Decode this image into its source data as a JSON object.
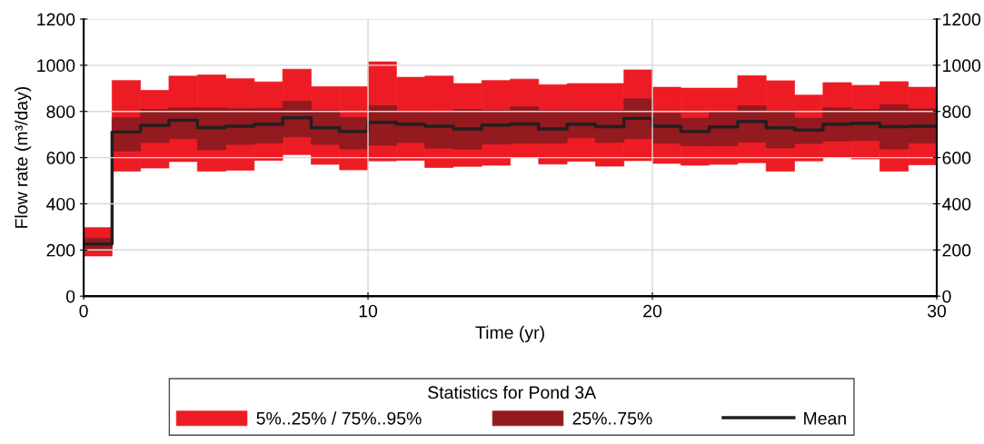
{
  "chart_data": {
    "type": "step",
    "xlabel": "Time (yr)",
    "ylabel": "Flow rate (m³/day)",
    "legend_title": "Statistics for Pond 3A",
    "legend": "bottom",
    "grid": true,
    "x": [
      0,
      1,
      2,
      3,
      4,
      5,
      6,
      7,
      8,
      9,
      10,
      11,
      12,
      13,
      14,
      15,
      16,
      17,
      18,
      19,
      20,
      21,
      22,
      23,
      24,
      25,
      26,
      27,
      28,
      29,
      30
    ],
    "xlim": [
      0,
      30
    ],
    "xticks": [
      0,
      10,
      20,
      30
    ],
    "ylim": [
      0,
      1200
    ],
    "yticks": [
      0,
      200,
      400,
      600,
      800,
      1000,
      1200
    ],
    "y2lim": [
      0,
      1200
    ],
    "y2ticks": [
      0,
      200,
      400,
      600,
      800,
      1000,
      1200
    ],
    "series": [
      {
        "name": "5%..25% / 75%..95%",
        "type": "bar",
        "color": "#ed1c24",
        "x": [
          0.5,
          1.5,
          2.5,
          3.5,
          4.5,
          5.5,
          6.5,
          7.5,
          8.5,
          9.5,
          10.5,
          11.5,
          12.5,
          13.5,
          14.5,
          15.5,
          16.5,
          17.5,
          18.5,
          19.5,
          20.5,
          21.5,
          22.5,
          23.5,
          24.5,
          25.5,
          26.5,
          27.5,
          28.5,
          29.5
        ],
        "base": [
          174,
          541,
          555,
          583,
          541,
          545,
          588,
          613,
          571,
          547,
          586,
          588,
          557,
          562,
          567,
          600,
          572,
          584,
          563,
          587,
          575,
          567,
          571,
          578,
          541,
          586,
          601,
          594,
          541,
          569
        ],
        "values": [
          123,
          393,
          336,
          370,
          417,
          397,
          340,
          370,
          336,
          360,
          429,
          360,
          396,
          359,
          367,
          340,
          344,
          337,
          358,
          393,
          330,
          334,
          330,
          377,
          392,
          285,
          324,
          319,
          388,
          336
        ]
      },
      {
        "name": "25%..75%",
        "type": "bar",
        "color": "#931a1e",
        "x": [
          0.5,
          1.5,
          2.5,
          3.5,
          4.5,
          5.5,
          6.5,
          7.5,
          8.5,
          9.5,
          10.5,
          11.5,
          12.5,
          13.5,
          14.5,
          15.5,
          16.5,
          17.5,
          18.5,
          19.5,
          20.5,
          21.5,
          22.5,
          23.5,
          24.5,
          25.5,
          26.5,
          27.5,
          28.5,
          29.5
        ],
        "base": [
          204,
          629,
          665,
          682,
          634,
          657,
          663,
          690,
          657,
          638,
          653,
          666,
          641,
          636,
          659,
          662,
          662,
          686,
          666,
          682,
          662,
          651,
          651,
          667,
          642,
          661,
          672,
          674,
          638,
          663
        ],
        "values": [
          47,
          143,
          143,
          134,
          182,
          155,
          150,
          154,
          147,
          136,
          172,
          133,
          160,
          172,
          145,
          158,
          142,
          118,
          138,
          173,
          129,
          120,
          150,
          157,
          161,
          110,
          144,
          134,
          191,
          148
        ]
      },
      {
        "name": "Mean",
        "color": "#231f20",
        "values": [
          226,
          711,
          740,
          762,
          730,
          736,
          745,
          772,
          729,
          713,
          753,
          745,
          736,
          724,
          741,
          746,
          724,
          745,
          734,
          770,
          736,
          713,
          733,
          757,
          729,
          719,
          745,
          749,
          734,
          736,
          736
        ]
      }
    ]
  }
}
